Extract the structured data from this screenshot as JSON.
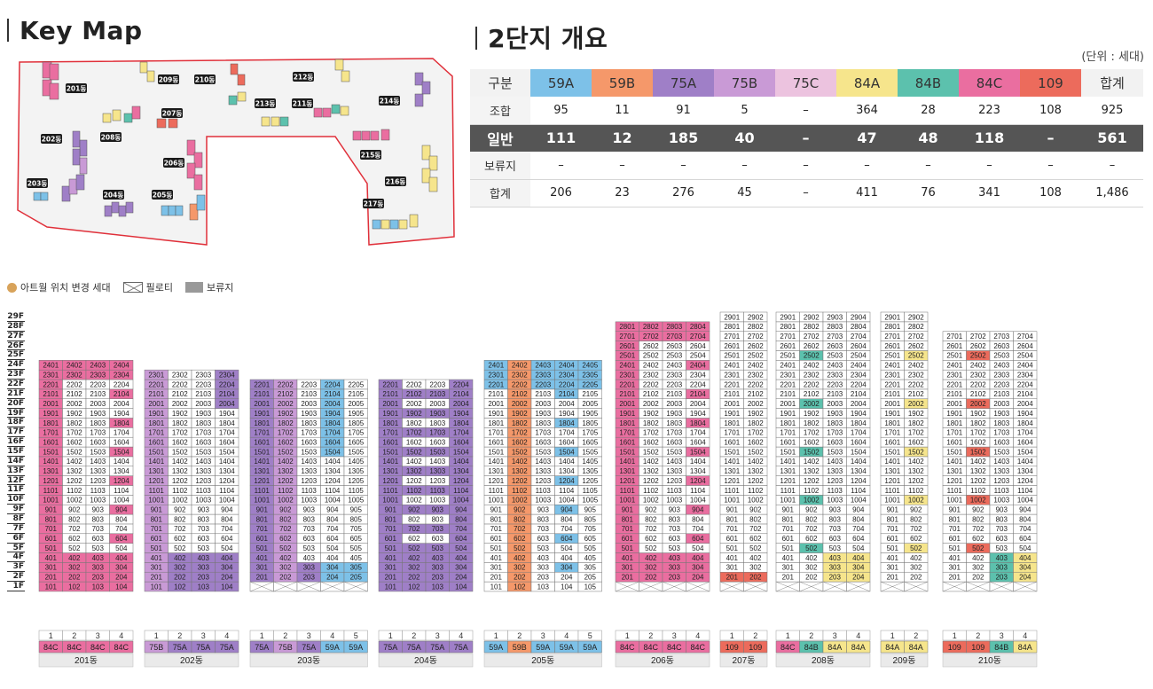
{
  "titles": {
    "keymap": "Key Map",
    "overview": "2단지 개요"
  },
  "unit_note": "(단위 : 세대)",
  "colors": {
    "59A": "#7dc1e8",
    "59B": "#f5986a",
    "75A": "#9f7fc7",
    "75B": "#c99ad6",
    "75C": "#ecc3df",
    "84A": "#f6e58c",
    "84B": "#5cc1ad",
    "84C": "#ea6ea0",
    "109": "#ec6b5c",
    "total_head": "#f2f2f2",
    "gray": "#9c9c9c",
    "map_border": "#e0303a"
  },
  "summary": {
    "headers": [
      "구분",
      "59A",
      "59B",
      "75A",
      "75B",
      "75C",
      "84A",
      "84B",
      "84C",
      "109",
      "합계"
    ],
    "rows": [
      {
        "label": "조합",
        "values": [
          "95",
          "11",
          "91",
          "5",
          "–",
          "364",
          "28",
          "223",
          "108",
          "925"
        ]
      },
      {
        "label": "일반",
        "values": [
          "111",
          "12",
          "185",
          "40",
          "–",
          "47",
          "48",
          "118",
          "–",
          "561"
        ],
        "dark": true
      },
      {
        "label": "보류지",
        "values": [
          "–",
          "–",
          "–",
          "–",
          "–",
          "–",
          "–",
          "–",
          "–",
          "–"
        ]
      },
      {
        "label": "합계",
        "values": [
          "206",
          "23",
          "276",
          "45",
          "–",
          "411",
          "76",
          "341",
          "108",
          "1,486"
        ]
      }
    ]
  },
  "legend": {
    "relocated": "아트월 위치 변경 세대",
    "piloti": "필로티",
    "reserved": "보류지"
  },
  "floors": [
    "29F",
    "28F",
    "27F",
    "26F",
    "25F",
    "24F",
    "23F",
    "22F",
    "21F",
    "20F",
    "19F",
    "18F",
    "17F",
    "16F",
    "15F",
    "14F",
    "13F",
    "12F",
    "11F",
    "10F",
    "9F",
    "8F",
    "7F",
    "6F",
    "5F",
    "4F",
    "3F",
    "2F",
    "1F"
  ],
  "map_labels": [
    "201동",
    "202동",
    "203동",
    "204동",
    "205동",
    "206동",
    "207동",
    "208동",
    "209동",
    "210동",
    "211동",
    "212동",
    "213동",
    "214동",
    "215동",
    "216동",
    "217동"
  ],
  "buildings": [
    {
      "name": "201동",
      "top": 24,
      "lines": [
        "1",
        "2",
        "3",
        "4"
      ],
      "types": [
        "84C",
        "84C",
        "84C",
        "84C"
      ]
    },
    {
      "name": "202동",
      "top": 23,
      "lines": [
        "1",
        "2",
        "3",
        "4"
      ],
      "types": [
        "75B",
        "75A",
        "75A",
        "75A"
      ]
    },
    {
      "name": "203동",
      "top": 22,
      "lines": [
        "1",
        "2",
        "3",
        "4",
        "5"
      ],
      "types": [
        "75A",
        "75B",
        "75A",
        "59A",
        "59A"
      ]
    },
    {
      "name": "204동",
      "top": 22,
      "lines": [
        "1",
        "2",
        "3",
        "4"
      ],
      "types": [
        "75A",
        "75A",
        "75A",
        "75A"
      ]
    },
    {
      "name": "205동",
      "top": 24,
      "lines": [
        "1",
        "2",
        "3",
        "4",
        "5"
      ],
      "types": [
        "59A",
        "59B",
        "59A",
        "59A",
        "59A"
      ]
    },
    {
      "name": "206동",
      "top": 28,
      "lines": [
        "1",
        "2",
        "3",
        "4"
      ],
      "types": [
        "84C",
        "84C",
        "84C",
        "84C"
      ]
    },
    {
      "name": "207동",
      "top": 29,
      "lines": [
        "1",
        "2"
      ],
      "types": [
        "109",
        "109"
      ]
    },
    {
      "name": "208동",
      "top": 29,
      "lines": [
        "1",
        "2",
        "3",
        "4"
      ],
      "types": [
        "84C",
        "84B",
        "84A",
        "84A"
      ]
    },
    {
      "name": "209동",
      "top": 29,
      "lines": [
        "1",
        "2"
      ],
      "types": [
        "84A",
        "84A"
      ]
    },
    {
      "name": "210동",
      "top": 27,
      "lines": [
        "1",
        "2",
        "3",
        "4"
      ],
      "types": [
        "109",
        "109",
        "84B",
        "84A"
      ]
    }
  ]
}
